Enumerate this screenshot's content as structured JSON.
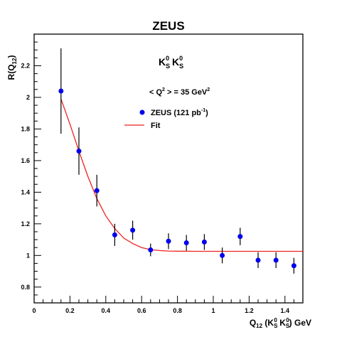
{
  "chart_data": {
    "type": "scatter",
    "title": "ZEUS",
    "xlabel": {
      "q": "Q",
      "sub": "12",
      "open": " (K",
      "s1": "S",
      "z1": "0",
      "mid": " K",
      "s2": "S",
      "z2": "0",
      "close": ") GeV"
    },
    "ylabel": {
      "r": "R(Q",
      "sub": "12",
      "close": ")"
    },
    "xlim": [
      0,
      1.5
    ],
    "ylim": [
      0.7,
      2.4
    ],
    "xticks": [
      0,
      0.2,
      0.4,
      0.6,
      0.8,
      1,
      1.2,
      1.4
    ],
    "yticks": [
      0.8,
      1,
      1.2,
      1.4,
      1.6,
      1.8,
      2,
      2.2
    ],
    "xtick_labels": [
      "0",
      "0.2",
      "0.4",
      "0.6",
      "0.8",
      "1",
      "1.2",
      "1.4"
    ],
    "ytick_labels": [
      "0.8",
      "1",
      "1.2",
      "1.4",
      "1.6",
      "1.8",
      "2",
      "2.2"
    ],
    "annotations": {
      "particles": {
        "k1": "K",
        "s1": "S",
        "z1": "0",
        "k2": " K",
        "s2": "S",
        "z2": "0"
      },
      "q2": {
        "pre": "< Q",
        "sup": "2",
        "mid": " > = 35 GeV",
        "sup2": "2"
      }
    },
    "series": [
      {
        "name": "ZEUS (121 pb",
        "name_sup": "-1",
        "name_close": ")",
        "kind": "points",
        "color": "#0000ee",
        "x": [
          0.15,
          0.25,
          0.35,
          0.45,
          0.55,
          0.65,
          0.75,
          0.85,
          0.95,
          1.05,
          1.15,
          1.25,
          1.35,
          1.45
        ],
        "y": [
          2.04,
          1.66,
          1.41,
          1.13,
          1.16,
          1.035,
          1.09,
          1.08,
          1.085,
          1.0,
          1.12,
          0.97,
          0.97,
          0.935
        ],
        "yerr": [
          0.27,
          0.15,
          0.1,
          0.07,
          0.06,
          0.04,
          0.05,
          0.05,
          0.05,
          0.05,
          0.055,
          0.05,
          0.05,
          0.05
        ]
      },
      {
        "name": "Fit",
        "kind": "line",
        "color": "#ee2222",
        "x": [
          0.15,
          0.2,
          0.25,
          0.3,
          0.35,
          0.4,
          0.45,
          0.5,
          0.55,
          0.6,
          0.65,
          0.7,
          0.75,
          0.8,
          0.9,
          1.0,
          1.1,
          1.2,
          1.3,
          1.4,
          1.5
        ],
        "y": [
          1.99,
          1.83,
          1.66,
          1.5,
          1.36,
          1.25,
          1.17,
          1.11,
          1.075,
          1.05,
          1.037,
          1.031,
          1.028,
          1.027,
          1.026,
          1.026,
          1.026,
          1.026,
          1.026,
          1.026,
          1.026
        ]
      }
    ],
    "legend": "top-right",
    "grid": false
  }
}
